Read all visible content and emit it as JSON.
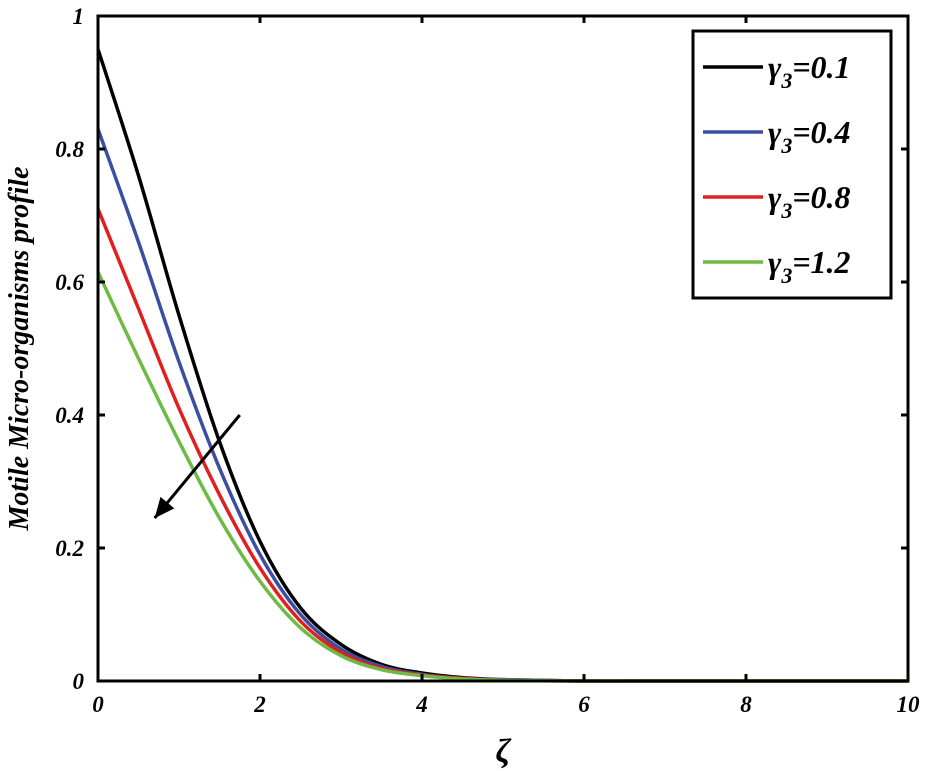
{
  "chart_data": {
    "type": "line",
    "xlabel": "ζ",
    "ylabel": "Motile Micro-organisms profile",
    "xlim": [
      0,
      10
    ],
    "ylim": [
      0,
      1
    ],
    "xticks": [
      0,
      2,
      4,
      6,
      8,
      10
    ],
    "xtick_labels": [
      "0",
      "2",
      "4",
      "6",
      "8",
      "10"
    ],
    "yticks": [
      0,
      0.2,
      0.4,
      0.6,
      0.8,
      1
    ],
    "ytick_labels": [
      "0",
      "0.2",
      "0.4",
      "0.6",
      "0.8",
      "1"
    ],
    "grid": false,
    "legend_position": "top-right",
    "x": [
      0,
      0.5,
      1,
      1.5,
      2,
      2.5,
      3,
      3.5,
      4,
      4.5,
      5,
      6,
      7,
      8,
      9,
      10
    ],
    "series": [
      {
        "name": "γ3=0.1",
        "legend_symbol": "γ",
        "legend_sub": "3",
        "legend_value": "=0.1",
        "color": "#000000",
        "values": [
          0.95,
          0.76,
          0.55,
          0.36,
          0.21,
          0.11,
          0.055,
          0.025,
          0.012,
          0.005,
          0.002,
          0,
          0,
          0,
          0,
          0
        ]
      },
      {
        "name": "γ3=0.4",
        "legend_symbol": "γ",
        "legend_sub": "3",
        "legend_value": "=0.4",
        "color": "#3b4ea0",
        "values": [
          0.83,
          0.66,
          0.48,
          0.32,
          0.19,
          0.1,
          0.048,
          0.022,
          0.01,
          0.004,
          0.002,
          0,
          0,
          0,
          0,
          0
        ]
      },
      {
        "name": "γ3=0.8",
        "legend_symbol": "γ",
        "legend_sub": "3",
        "legend_value": "=0.8",
        "color": "#e02020",
        "values": [
          0.71,
          0.56,
          0.41,
          0.28,
          0.17,
          0.09,
          0.043,
          0.019,
          0.009,
          0.004,
          0.001,
          0,
          0,
          0,
          0,
          0
        ]
      },
      {
        "name": "γ3=1.2",
        "legend_symbol": "γ",
        "legend_sub": "3",
        "legend_value": "=1.2",
        "color": "#6dbb45",
        "values": [
          0.615,
          0.485,
          0.36,
          0.245,
          0.15,
          0.08,
          0.038,
          0.017,
          0.008,
          0.003,
          0.001,
          0,
          0,
          0,
          0,
          0
        ]
      }
    ],
    "annotation": {
      "type": "arrow",
      "meaning": "increasing γ3",
      "from": [
        1.75,
        0.4
      ],
      "to": [
        0.7,
        0.245
      ]
    }
  }
}
